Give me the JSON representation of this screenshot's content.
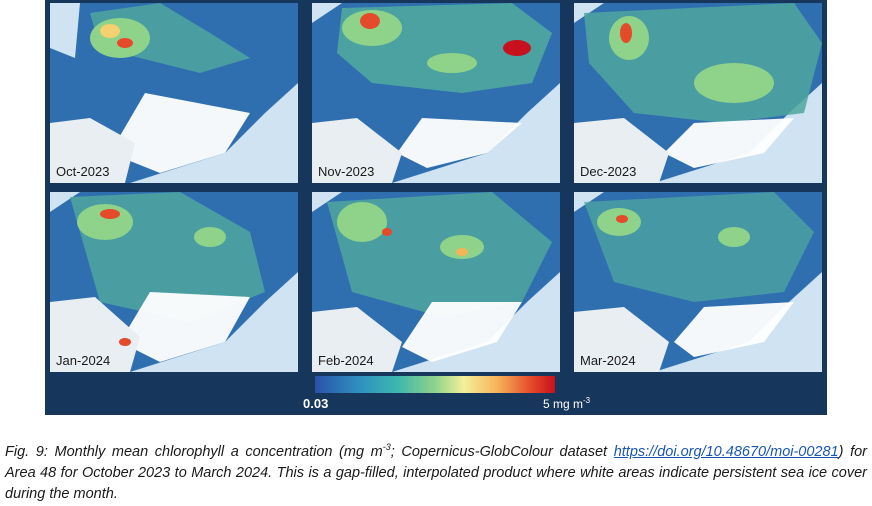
{
  "figure": {
    "panels": [
      {
        "label": "Oct-2023"
      },
      {
        "label": "Nov-2023"
      },
      {
        "label": "Dec-2023"
      },
      {
        "label": "Jan-2024"
      },
      {
        "label": "Feb-2024"
      },
      {
        "label": "Mar-2024"
      }
    ],
    "colorbar": {
      "min_label": "0.03",
      "max_label_prefix": "5 mg m",
      "max_label_exponent": "-3",
      "colors": [
        "#2a52a8",
        "#2f8fc0",
        "#3cb6b0",
        "#8fd38a",
        "#f4f09a",
        "#f5b45a",
        "#e54a2a",
        "#c8101e"
      ]
    },
    "colors": {
      "background": "#17365c",
      "land_sea": "#cfe3f2",
      "ice": "#ffffff"
    }
  },
  "caption": {
    "part1": "Fig. 9: Monthly mean chlorophyll a concentration (mg m",
    "exp": "-3",
    "part2": "; Copernicus-GlobColour dataset ",
    "link": "https://doi.org/10.48670/moi-00281",
    "part3": ") for Area 48 for October 2023 to March 2024. This is a gap-filled, interpolated product where white areas indicate persistent sea ice cover during the month."
  }
}
